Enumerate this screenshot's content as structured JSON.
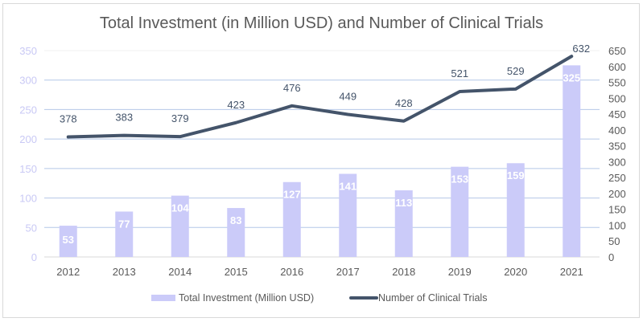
{
  "chart_data": {
    "type": "bar+line",
    "title": "Total Investment (in Million USD) and Number of Clinical Trials",
    "categories": [
      "2012",
      "2013",
      "2014",
      "2015",
      "2016",
      "2017",
      "2018",
      "2019",
      "2020",
      "2021"
    ],
    "series": [
      {
        "name": "Total Investment (Million USD)",
        "type": "bar",
        "axis": "left",
        "color": "#cbcbf9",
        "values": [
          53,
          77,
          104,
          83,
          127,
          141,
          113,
          153,
          159,
          325
        ]
      },
      {
        "name": "Number of Clinical Trials",
        "type": "line",
        "axis": "right",
        "color": "#44546a",
        "values": [
          378,
          383,
          379,
          423,
          476,
          449,
          428,
          521,
          529,
          632
        ]
      }
    ],
    "y_left": {
      "min": 0,
      "max": 350,
      "step": 50,
      "ticks": [
        "0",
        "50",
        "100",
        "150",
        "200",
        "250",
        "300",
        "350"
      ],
      "tick_color": "#c9c9f5"
    },
    "y_right": {
      "min": 0,
      "max": 650,
      "step": 50,
      "ticks": [
        "0",
        "50",
        "100",
        "150",
        "200",
        "250",
        "300",
        "350",
        "400",
        "450",
        "500",
        "550",
        "600",
        "650"
      ]
    },
    "xlabel": "",
    "ylabel_left": "",
    "ylabel_right": "",
    "grid": true,
    "grid_color": "#b4c7e7",
    "legend_position": "bottom"
  }
}
